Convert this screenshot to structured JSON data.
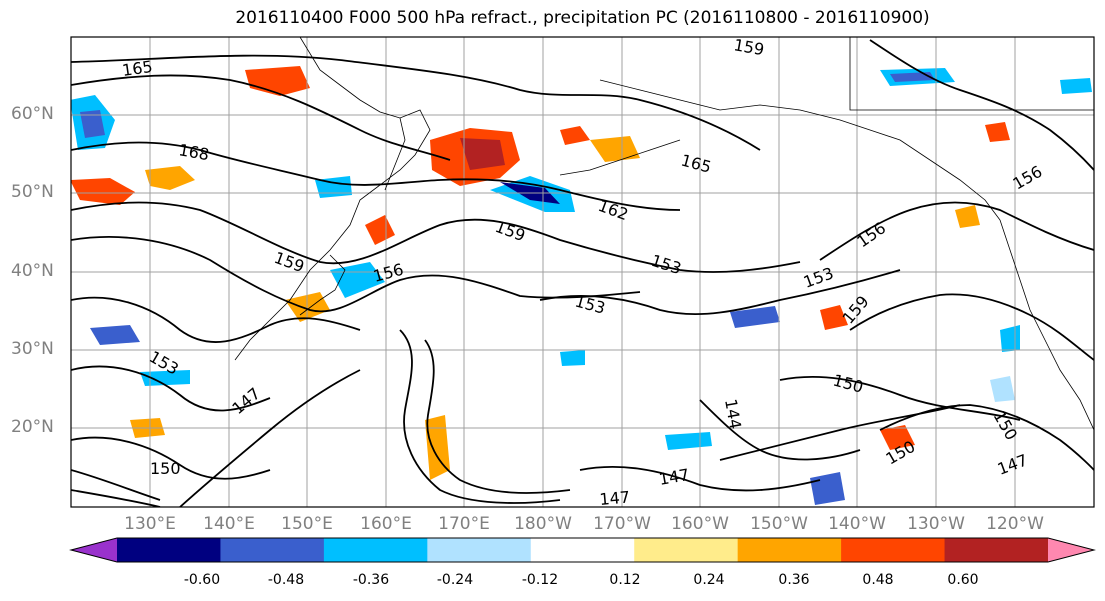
{
  "title": "2016110400 F000 500 hPa refract., precipitation PC (2016110800 - 2016110900)",
  "map": {
    "lat_labels": [
      "60°N",
      "50°N",
      "40°N",
      "30°N",
      "20°N"
    ],
    "lon_labels": [
      "130°E",
      "140°E",
      "150°E",
      "160°E",
      "170°E",
      "180°W",
      "170°W",
      "160°W",
      "150°W",
      "140°W",
      "130°W",
      "120°W"
    ],
    "contour_labels": [
      "165",
      "168",
      "159",
      "165",
      "162",
      "159",
      "153",
      "159",
      "153",
      "156",
      "153",
      "153",
      "156",
      "147",
      "150",
      "150",
      "147",
      "150",
      "144",
      "147",
      "159",
      "156",
      "150",
      "147"
    ],
    "gridline_color": "#a0a0a0",
    "contour_color": "#000000"
  },
  "colorbar": {
    "colors": [
      "#9932cc",
      "#000080",
      "#3a5fcd",
      "#00bfff",
      "#b0e2ff",
      "#ffffff",
      "#ffec8b",
      "#ffa500",
      "#ff4500",
      "#b22222",
      "#ff88b0"
    ],
    "tick_labels": [
      "-0.60",
      "-0.48",
      "-0.36",
      "-0.24",
      "-0.12",
      "0.12",
      "0.24",
      "0.36",
      "0.48",
      "0.60"
    ],
    "extend": "both"
  }
}
